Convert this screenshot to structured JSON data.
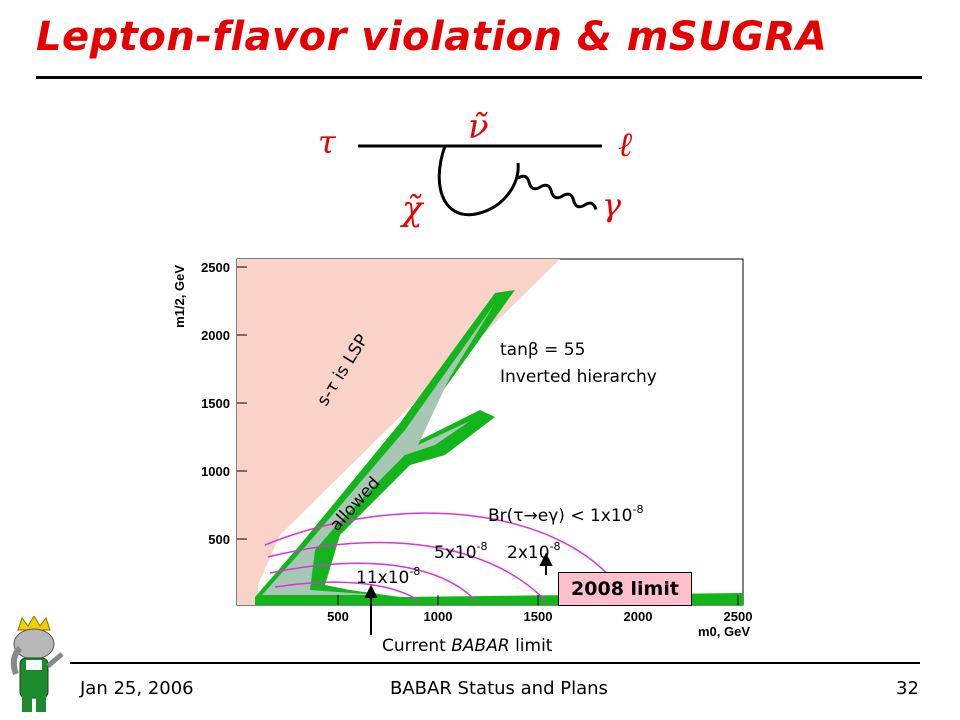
{
  "title": "Lepton-flavor violation & mSUGRA",
  "footer": {
    "date": "Jan 25, 2006",
    "center": "BABAR Status and Plans",
    "page": "32"
  },
  "feynman": {
    "tau": "τ",
    "sneutrino": "ν̃",
    "lepton": "ℓ",
    "neutralino": "χ̃",
    "photon": "γ"
  },
  "plot": {
    "ylabel": "m1/2, GeV",
    "xlabel": "m0, GeV",
    "yticks": [
      "500",
      "1000",
      "1500",
      "2000",
      "2500"
    ],
    "xticks": [
      "500",
      "1000",
      "1500",
      "2000",
      "2500"
    ],
    "region_lsp": "s-τ is LSP",
    "region_allowed": "allowed",
    "param_tanb": "tanβ = 55",
    "param_hier": "Inverted hierarchy",
    "contour_1": "Br(τ→eγ) < 1x10",
    "contour_1_exp": "-8",
    "contour_2": "2x10",
    "contour_2_exp": "-8",
    "contour_5": "5x10",
    "contour_5_exp": "-8",
    "contour_11": "11x10",
    "contour_11_exp": "-8",
    "current_limit_prefix": "Current ",
    "current_limit_babar": "BABAR",
    "current_limit_suffix": " limit",
    "limit_2008": "2008 limit"
  },
  "colors": {
    "title": "#e60000",
    "lsp_region": "#f9d3c8",
    "allowed_region": "#a8c6b4",
    "green_band": "#12b51a",
    "contours": "#d933d9",
    "limit_box": "#ffc0cc"
  }
}
